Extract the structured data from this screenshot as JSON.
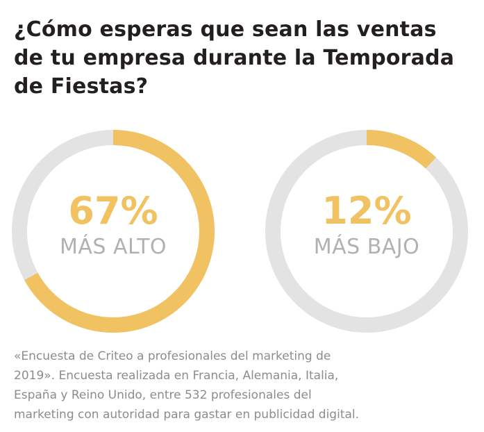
{
  "title_lines": [
    "¿Cómo esperas que sean las ventas",
    "de tu empresa durante la Temporada",
    "de Fiestas?"
  ],
  "colors": {
    "highlight": "#f0c261",
    "track": "#e3e3e3",
    "title": "#231f20",
    "label": "#b1b1b1",
    "source": "#8c8c8c"
  },
  "chart_data": [
    {
      "type": "pie",
      "categories": [
        "MÁS ALTO"
      ],
      "values": [
        67
      ],
      "value_label": "67%",
      "label": "MÁS ALTO",
      "ylim": [
        0,
        100
      ]
    },
    {
      "type": "pie",
      "categories": [
        "MÁS BAJO"
      ],
      "values": [
        12
      ],
      "value_label": "12%",
      "label": "MÁS BAJO",
      "ylim": [
        0,
        100
      ]
    }
  ],
  "source_lines": [
    "«Encuesta de Criteo a profesionales del marketing de",
    "2019». Encuesta realizada en Francia, Alemania, Italia,",
    "España y Reino Unido, entre 532 profesionales del",
    "marketing con autoridad para gastar en publicidad digital."
  ]
}
